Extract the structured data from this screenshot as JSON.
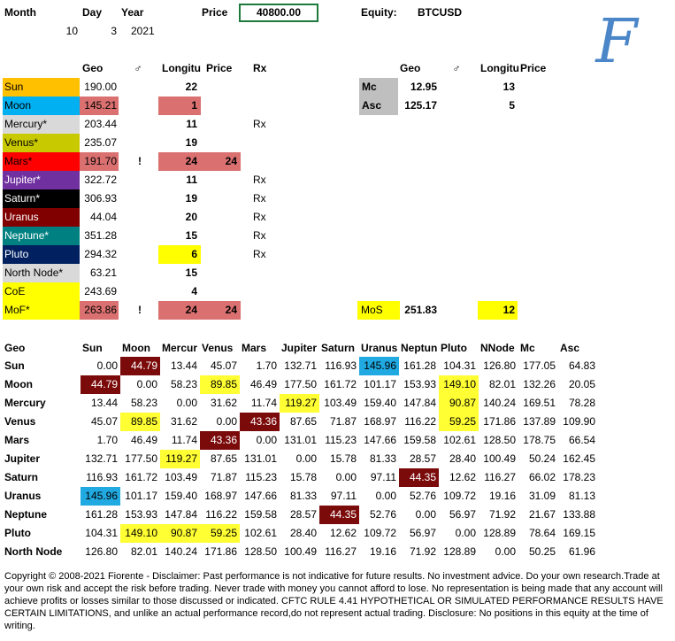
{
  "header": {
    "month_label": "Month",
    "day_label": "Day",
    "year_label": "Year",
    "price_label": "Price",
    "price_value": "40800.00",
    "equity_label": "Equity:",
    "equity_value": "BTCUSD",
    "month": "10",
    "day": "3",
    "year": "2021",
    "logo_letter": "F"
  },
  "planets_table": {
    "headers": {
      "geo": "Geo",
      "aspect": "♂",
      "longitude": "Longitu",
      "price": "Price",
      "rx": "Rx"
    },
    "rows": [
      {
        "name": "Sun",
        "geo": "190.00",
        "flag": "",
        "lon": "22",
        "price": "",
        "rx": "",
        "name_bg": "#ffc000",
        "name_fg": "#000000",
        "geo_bg": "",
        "lon_bg": "",
        "price_bg": ""
      },
      {
        "name": "Moon",
        "geo": "145.21",
        "flag": "",
        "lon": "1",
        "price": "",
        "rx": "",
        "name_bg": "#00b0f0",
        "name_fg": "#000000",
        "geo_bg": "#da7070",
        "lon_bg": "#da7070",
        "price_bg": ""
      },
      {
        "name": "Mercury*",
        "geo": "203.44",
        "flag": "",
        "lon": "11",
        "price": "",
        "rx": "Rx",
        "name_bg": "#d9d9d9",
        "name_fg": "#000000",
        "geo_bg": "",
        "lon_bg": "",
        "price_bg": ""
      },
      {
        "name": "Venus*",
        "geo": "235.07",
        "flag": "",
        "lon": "19",
        "price": "",
        "rx": "",
        "name_bg": "#c9c900",
        "name_fg": "#000000",
        "geo_bg": "",
        "lon_bg": "",
        "price_bg": ""
      },
      {
        "name": "Mars*",
        "geo": "191.70",
        "flag": "!",
        "lon": "24",
        "price": "24",
        "rx": "",
        "name_bg": "#ff0000",
        "name_fg": "#000000",
        "geo_bg": "#da7070",
        "lon_bg": "#da7070",
        "price_bg": "#da7070"
      },
      {
        "name": "Jupiter*",
        "geo": "322.72",
        "flag": "",
        "lon": "11",
        "price": "",
        "rx": "Rx",
        "name_bg": "#7030a0",
        "name_fg": "#ffffff",
        "geo_bg": "",
        "lon_bg": "",
        "price_bg": ""
      },
      {
        "name": "Saturn*",
        "geo": "306.93",
        "flag": "",
        "lon": "19",
        "price": "",
        "rx": "Rx",
        "name_bg": "#000000",
        "name_fg": "#ffffff",
        "geo_bg": "",
        "lon_bg": "",
        "price_bg": ""
      },
      {
        "name": "Uranus",
        "geo": "44.04",
        "flag": "",
        "lon": "20",
        "price": "",
        "rx": "Rx",
        "name_bg": "#800000",
        "name_fg": "#ffffff",
        "geo_bg": "",
        "lon_bg": "",
        "price_bg": ""
      },
      {
        "name": "Neptune*",
        "geo": "351.28",
        "flag": "",
        "lon": "15",
        "price": "",
        "rx": "Rx",
        "name_bg": "#008080",
        "name_fg": "#ffffff",
        "geo_bg": "",
        "lon_bg": "",
        "price_bg": ""
      },
      {
        "name": "Pluto",
        "geo": "294.32",
        "flag": "",
        "lon": "6",
        "price": "",
        "rx": "Rx",
        "name_bg": "#002060",
        "name_fg": "#ffffff",
        "geo_bg": "",
        "lon_bg": "#ffff00",
        "price_bg": ""
      },
      {
        "name": "North Node*",
        "geo": "63.21",
        "flag": "",
        "lon": "15",
        "price": "",
        "rx": "",
        "name_bg": "#d9d9d9",
        "name_fg": "#000000",
        "geo_bg": "",
        "lon_bg": "",
        "price_bg": ""
      },
      {
        "name": "CoE",
        "geo": "243.69",
        "flag": "",
        "lon": "4",
        "price": "",
        "rx": "",
        "name_bg": "#ffff00",
        "name_fg": "#000000",
        "geo_bg": "",
        "lon_bg": "",
        "price_bg": ""
      },
      {
        "name": "MoF*",
        "geo": "263.86",
        "flag": "!",
        "lon": "24",
        "price": "24",
        "rx": "",
        "name_bg": "#ffff00",
        "name_fg": "#000000",
        "geo_bg": "#da7070",
        "lon_bg": "#da7070",
        "price_bg": "#da7070"
      }
    ]
  },
  "angles_table": {
    "headers": {
      "geo": "Geo",
      "aspect": "♂",
      "longitude": "Longitu",
      "price": "Price"
    },
    "rows": [
      {
        "name": "Mc",
        "geo": "12.95",
        "lon": "13"
      },
      {
        "name": "Asc",
        "geo": "125.17",
        "lon": "5"
      }
    ],
    "mos": {
      "name": "MoS",
      "geo": "251.83",
      "lon": "12"
    }
  },
  "matrix": {
    "corner": "Geo",
    "columns": [
      "Sun",
      "Moon",
      "Mercur",
      "Venus",
      "Mars",
      "Jupiter",
      "Saturn",
      "Uranus",
      "Neptun",
      "Pluto",
      "NNode",
      "Mc",
      "Asc"
    ],
    "rows": [
      {
        "name": "Sun",
        "values": [
          "0.00",
          "44.79",
          "13.44",
          "45.07",
          "1.70",
          "132.71",
          "116.93",
          "145.96",
          "161.28",
          "104.31",
          "126.80",
          "177.05",
          "64.83"
        ]
      },
      {
        "name": "Moon",
        "values": [
          "44.79",
          "0.00",
          "58.23",
          "89.85",
          "46.49",
          "177.50",
          "161.72",
          "101.17",
          "153.93",
          "149.10",
          "82.01",
          "132.26",
          "20.05"
        ]
      },
      {
        "name": "Mercury",
        "values": [
          "13.44",
          "58.23",
          "0.00",
          "31.62",
          "11.74",
          "119.27",
          "103.49",
          "159.40",
          "147.84",
          "90.87",
          "140.24",
          "169.51",
          "78.28"
        ]
      },
      {
        "name": "Venus",
        "values": [
          "45.07",
          "89.85",
          "31.62",
          "0.00",
          "43.36",
          "87.65",
          "71.87",
          "168.97",
          "116.22",
          "59.25",
          "171.86",
          "137.89",
          "109.90"
        ]
      },
      {
        "name": "Mars",
        "values": [
          "1.70",
          "46.49",
          "11.74",
          "43.36",
          "0.00",
          "131.01",
          "115.23",
          "147.66",
          "159.58",
          "102.61",
          "128.50",
          "178.75",
          "66.54"
        ]
      },
      {
        "name": "Jupiter",
        "values": [
          "132.71",
          "177.50",
          "119.27",
          "87.65",
          "131.01",
          "0.00",
          "15.78",
          "81.33",
          "28.57",
          "28.40",
          "100.49",
          "50.24",
          "162.45"
        ]
      },
      {
        "name": "Saturn",
        "values": [
          "116.93",
          "161.72",
          "103.49",
          "71.87",
          "115.23",
          "15.78",
          "0.00",
          "97.11",
          "44.35",
          "12.62",
          "116.27",
          "66.02",
          "178.23"
        ]
      },
      {
        "name": "Uranus",
        "values": [
          "145.96",
          "101.17",
          "159.40",
          "168.97",
          "147.66",
          "81.33",
          "97.11",
          "0.00",
          "52.76",
          "109.72",
          "19.16",
          "31.09",
          "81.13"
        ]
      },
      {
        "name": "Neptune",
        "values": [
          "161.28",
          "153.93",
          "147.84",
          "116.22",
          "159.58",
          "28.57",
          "44.35",
          "52.76",
          "0.00",
          "56.97",
          "71.92",
          "21.67",
          "133.88"
        ]
      },
      {
        "name": "Pluto",
        "values": [
          "104.31",
          "149.10",
          "90.87",
          "59.25",
          "102.61",
          "28.40",
          "12.62",
          "109.72",
          "56.97",
          "0.00",
          "128.89",
          "78.64",
          "169.15"
        ]
      },
      {
        "name": "North Node",
        "values": [
          "126.80",
          "82.01",
          "140.24",
          "171.86",
          "128.50",
          "100.49",
          "116.27",
          "19.16",
          "71.92",
          "128.89",
          "0.00",
          "50.25",
          "61.96"
        ]
      }
    ],
    "highlights": [
      {
        "row": 0,
        "col": 1,
        "color": "#7b0b0b",
        "fg": "#ffffff"
      },
      {
        "row": 0,
        "col": 7,
        "color": "#21a9e1",
        "fg": "#000000"
      },
      {
        "row": 1,
        "col": 0,
        "color": "#7b0b0b",
        "fg": "#ffffff"
      },
      {
        "row": 1,
        "col": 3,
        "color": "#ffff33",
        "fg": "#000000"
      },
      {
        "row": 1,
        "col": 9,
        "color": "#ffff33",
        "fg": "#000000"
      },
      {
        "row": 2,
        "col": 5,
        "color": "#ffff33",
        "fg": "#000000"
      },
      {
        "row": 2,
        "col": 9,
        "color": "#ffff33",
        "fg": "#000000"
      },
      {
        "row": 3,
        "col": 1,
        "color": "#ffff33",
        "fg": "#000000"
      },
      {
        "row": 3,
        "col": 4,
        "color": "#7b0b0b",
        "fg": "#ffffff"
      },
      {
        "row": 3,
        "col": 9,
        "color": "#ffff33",
        "fg": "#000000"
      },
      {
        "row": 4,
        "col": 3,
        "color": "#7b0b0b",
        "fg": "#ffffff"
      },
      {
        "row": 5,
        "col": 2,
        "color": "#ffff33",
        "fg": "#000000"
      },
      {
        "row": 6,
        "col": 8,
        "color": "#7b0b0b",
        "fg": "#ffffff"
      },
      {
        "row": 7,
        "col": 0,
        "color": "#21a9e1",
        "fg": "#000000"
      },
      {
        "row": 8,
        "col": 6,
        "color": "#7b0b0b",
        "fg": "#ffffff"
      },
      {
        "row": 9,
        "col": 1,
        "color": "#ffff33",
        "fg": "#000000"
      },
      {
        "row": 9,
        "col": 2,
        "color": "#ffff33",
        "fg": "#000000"
      },
      {
        "row": 9,
        "col": 3,
        "color": "#ffff33",
        "fg": "#000000"
      }
    ]
  },
  "colors": {
    "pink": "#da7070",
    "yellow": "#ffff00",
    "gray": "#bfbfbf",
    "price_border": "#1e7a3c",
    "logo": "#4a86c8"
  },
  "disclaimer": "Copyright © 2008-2021 Fiorente -  Disclaimer: Past performance is not indicative for future results. No investment advice. Do your own research.Trade at your own risk and accept the risk before trading. Never trade with money you cannot afford to lose. No representation is being made that any account will achieve profits or losses similar to those discussed or indicated. CFTC RULE 4.41 HYPOTHETICAL OR SIMULATED PERFORMANCE RESULTS HAVE CERTAIN LIMITATIONS, and unlike an actual performance record,do not represent actual trading. Disclosure: No positions in this equity at the time of writing."
}
